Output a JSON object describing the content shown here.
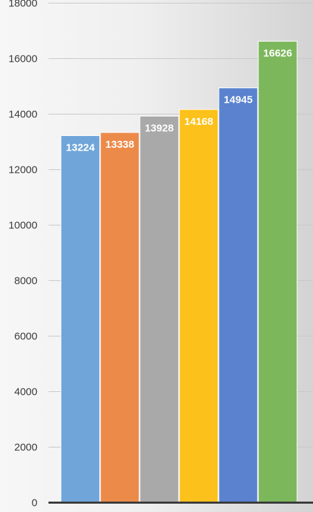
{
  "chart_data": {
    "type": "bar",
    "title": "",
    "xlabel": "",
    "ylabel": "",
    "ylim": [
      0,
      18000
    ],
    "yticks": [
      0,
      2000,
      4000,
      6000,
      8000,
      10000,
      12000,
      14000,
      16000,
      18000
    ],
    "grid": true,
    "legend": "none",
    "values": [
      13224,
      13338,
      13928,
      14168,
      14945,
      16626
    ],
    "colors": [
      "#6fa5d9",
      "#ec8a4a",
      "#a9a9a9",
      "#fcc21b",
      "#5a82ce",
      "#7cb75c"
    ],
    "gridline_color": "#c8c8c8",
    "axis_color": "#3a3a3a"
  }
}
